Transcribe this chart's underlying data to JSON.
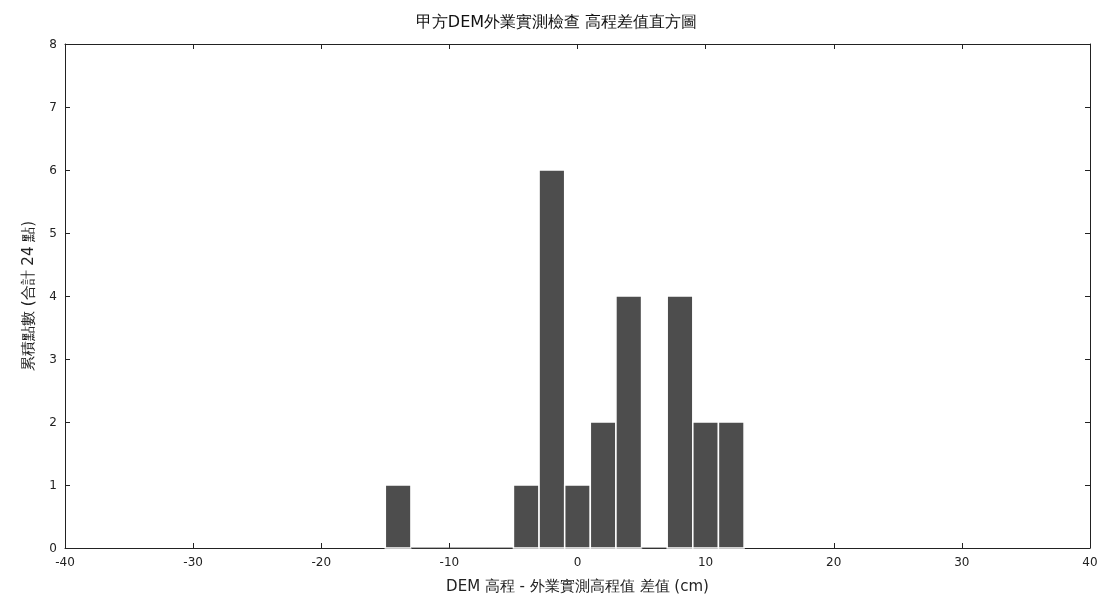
{
  "chart_data": {
    "type": "histogram",
    "title": "甲方DEM外業實測檢查 高程差值直方圖",
    "xlabel": "DEM 高程 - 外業實測高程值 差值 (cm)",
    "ylabel": "累積點數 (合計 24 點)",
    "bins": [
      -15,
      -13,
      -11,
      -9,
      -7,
      -5,
      -3,
      -1,
      1,
      3,
      5,
      7,
      9,
      11,
      13
    ],
    "values": [
      1,
      0,
      0,
      0,
      0,
      1,
      6,
      1,
      2,
      4,
      0,
      4,
      2,
      2
    ],
    "color": "#4d4d4d",
    "xlim": [
      -40,
      40
    ],
    "xticks": [
      -40,
      -30,
      -20,
      -10,
      0,
      10,
      20,
      30,
      40
    ],
    "ylim": [
      0,
      8
    ],
    "yticks": [
      0,
      1,
      2,
      3,
      4,
      5,
      6,
      7,
      8
    ],
    "grid": false
  }
}
